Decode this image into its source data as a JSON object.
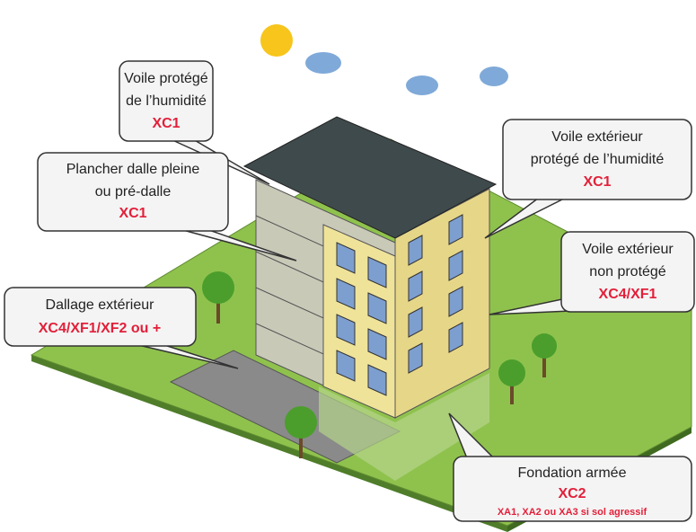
{
  "callouts": [
    {
      "lines": [
        "Voile protégé",
        "de l’humidité"
      ],
      "code": "XC1"
    },
    {
      "lines": [
        "Plancher dalle pleine",
        "ou pré-dalle"
      ],
      "code": "XC1"
    },
    {
      "lines": [
        "Voile extérieur",
        "protégé de l’humidité"
      ],
      "code": "XC1"
    },
    {
      "lines": [
        "Voile extérieur",
        "non protégé"
      ],
      "code": "XC4/XF1"
    },
    {
      "lines": [
        "Dallage extérieur"
      ],
      "code": "XC4/XF1/XF2 ou +"
    },
    {
      "lines": [
        "Fondation armée"
      ],
      "code": "XC2",
      "note": "XA1, XA2 ou XA3 si sol agressif"
    }
  ]
}
